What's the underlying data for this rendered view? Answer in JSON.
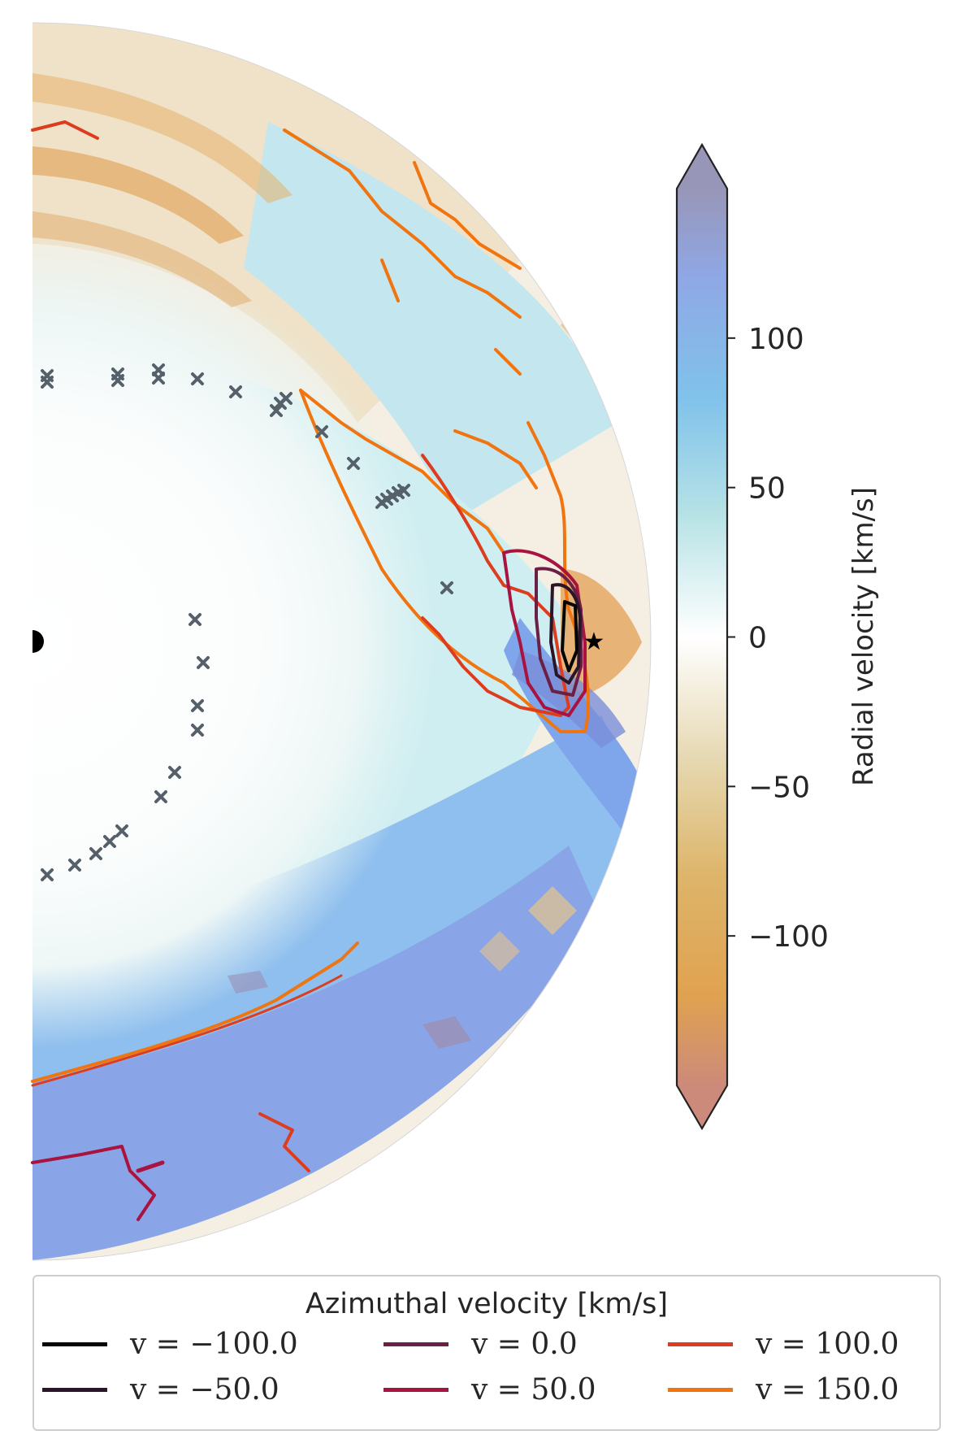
{
  "chart_data": {
    "type": "heatmap",
    "description_kind": "polar half-disk contour map with overlaid contour lines",
    "colorbar": {
      "label": "Radial velocity [km/s]",
      "ticks": [
        100,
        50,
        0,
        -50,
        -100
      ],
      "tick_labels": [
        "100",
        "50",
        "0",
        "−50",
        "−100"
      ],
      "range": [
        -150,
        150
      ],
      "extend": "both",
      "colormap_stops": [
        {
          "value": 150,
          "color": "#9896b8"
        },
        {
          "value": 120,
          "color": "#8fa8e6"
        },
        {
          "value": 80,
          "color": "#80c2ea"
        },
        {
          "value": 40,
          "color": "#b8e3e6"
        },
        {
          "value": 0,
          "color": "#ffffff"
        },
        {
          "value": -40,
          "color": "#e6d9b3"
        },
        {
          "value": -80,
          "color": "#ddb56a"
        },
        {
          "value": -120,
          "color": "#e0a250"
        },
        {
          "value": -150,
          "color": "#cc8a7a"
        }
      ]
    },
    "legend": {
      "title": "Azimuthal velocity [km/s]",
      "placement": "bottom",
      "entries": [
        {
          "label": "v = −100.0",
          "value": -100.0,
          "color": "#050505"
        },
        {
          "label": "v = −50.0",
          "value": -50.0,
          "color": "#2a1628"
        },
        {
          "label": "v = 0.0",
          "value": 0.0,
          "color": "#6b1f45"
        },
        {
          "label": "v = 50.0",
          "value": 50.0,
          "color": "#a8133f"
        },
        {
          "label": "v = 100.0",
          "value": 100.0,
          "color": "#dd3d1f"
        },
        {
          "label": "v = 150.0",
          "value": 150.0,
          "color": "#f07510"
        }
      ]
    },
    "markers": {
      "center_marker": "half-filled-circle",
      "planet_marker": "star",
      "cross_marker_color": "#55606b"
    },
    "grid": false
  }
}
